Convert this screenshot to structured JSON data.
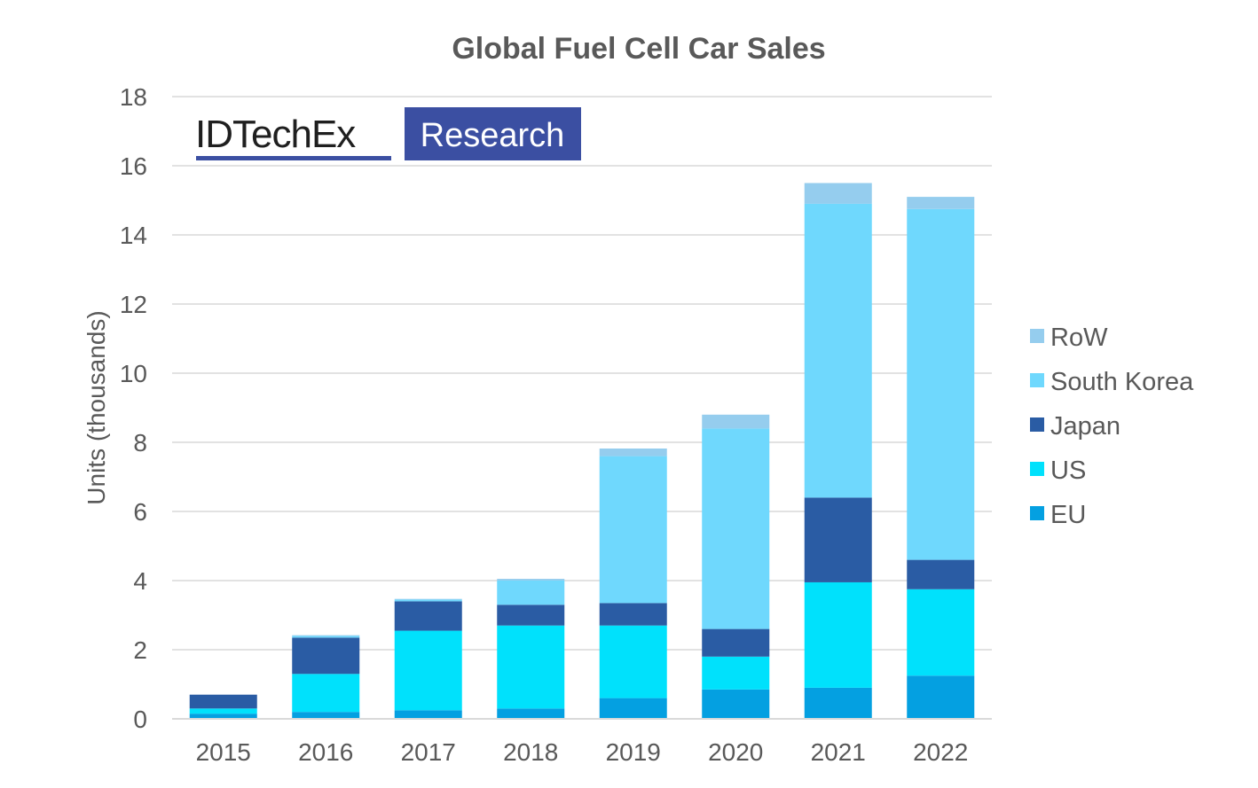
{
  "logo": {
    "brand": "IDTechEx",
    "tag": "Research"
  },
  "colors": {
    "RoW": "#95cdee",
    "South Korea": "#6fd8fd",
    "Japan": "#2a5ca4",
    "US": "#00e1fc",
    "EU": "#04a0e1",
    "logo_box": "#3b4fa2",
    "grid": "#d9d9d9",
    "text": "#595959"
  },
  "chart_data": {
    "type": "bar",
    "stacked": true,
    "title": "Global Fuel Cell Car Sales",
    "xlabel": "",
    "ylabel": "Units (thousands)",
    "ylim": [
      0,
      18
    ],
    "yticks": [
      0,
      2,
      4,
      6,
      8,
      10,
      12,
      14,
      16,
      18
    ],
    "grid": true,
    "legend_position": "right",
    "legend_order": [
      "RoW",
      "South Korea",
      "Japan",
      "US",
      "EU"
    ],
    "categories": [
      "2015",
      "2016",
      "2017",
      "2018",
      "2019",
      "2020",
      "2021",
      "2022"
    ],
    "series": [
      {
        "name": "EU",
        "values": [
          0.15,
          0.2,
          0.25,
          0.3,
          0.6,
          0.85,
          0.9,
          1.25
        ]
      },
      {
        "name": "US",
        "values": [
          0.15,
          1.1,
          2.3,
          2.4,
          2.1,
          0.95,
          3.05,
          2.5
        ]
      },
      {
        "name": "Japan",
        "values": [
          0.4,
          1.05,
          0.85,
          0.6,
          0.65,
          0.8,
          2.45,
          0.85
        ]
      },
      {
        "name": "South Korea",
        "values": [
          0.0,
          0.05,
          0.05,
          0.7,
          4.25,
          5.8,
          8.5,
          10.15
        ]
      },
      {
        "name": "RoW",
        "values": [
          0.0,
          0.02,
          0.02,
          0.05,
          0.22,
          0.4,
          0.6,
          0.35
        ]
      }
    ]
  }
}
